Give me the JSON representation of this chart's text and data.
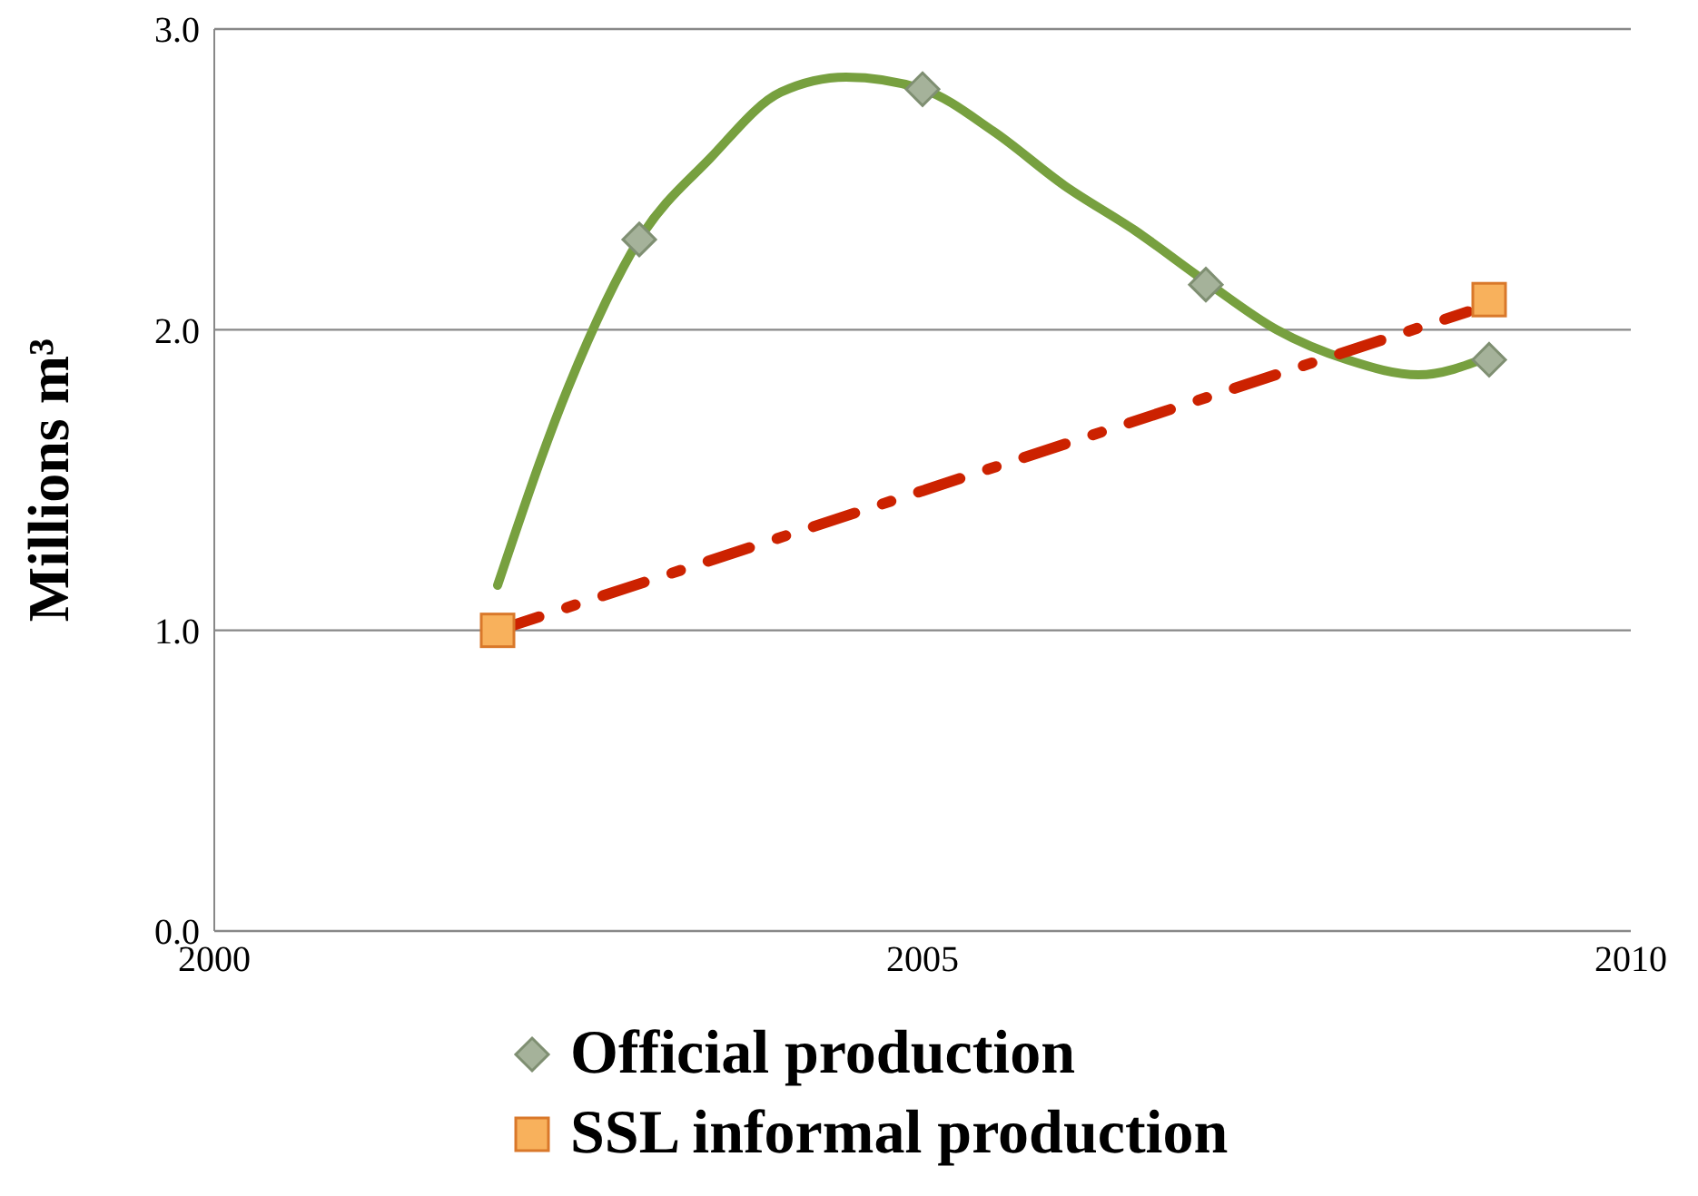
{
  "chart_data": {
    "type": "scatter",
    "ylabel": "Millions m³",
    "xlim": [
      2000,
      2010
    ],
    "xticks": [
      2000,
      2005,
      2010
    ],
    "ylim": [
      0,
      3
    ],
    "yticks": [
      {
        "value": 0,
        "label": "0.0"
      },
      {
        "value": 1,
        "label": "1.0"
      },
      {
        "value": 2,
        "label": "2.0"
      },
      {
        "value": 3,
        "label": "3.0"
      }
    ],
    "grid": "y",
    "legend": "bottom",
    "series": [
      {
        "name": "Official production",
        "marker": "diamond",
        "color": "#a5b29a",
        "x": [
          2003,
          2005,
          2007,
          2009
        ],
        "values": [
          2.3,
          2.8,
          2.15,
          1.9
        ]
      },
      {
        "name": "SSL informal production",
        "marker": "square",
        "color": "#f8b15c",
        "x": [
          2002,
          2009
        ],
        "values": [
          1.0,
          2.1
        ]
      },
      {
        "type": "line",
        "marker": "none",
        "line_style": "solid",
        "color": "#77a03f",
        "x": [
          2002,
          2002.5,
          2003,
          2003.5,
          2004,
          2004.46,
          2005,
          2005.5,
          2006,
          2006.5,
          2007,
          2007.5,
          2008,
          2008.5,
          2009
        ],
        "values": [
          1.15,
          1.81,
          2.3,
          2.57,
          2.79,
          2.84,
          2.8,
          2.66,
          2.48,
          2.33,
          2.16,
          2.0,
          1.9,
          1.85,
          1.91
        ]
      },
      {
        "type": "line",
        "marker": "none",
        "line_style": "dashed",
        "color": "#cc2200",
        "x": [
          2002,
          2008.85
        ],
        "values": [
          1.0,
          2.06
        ]
      }
    ]
  }
}
